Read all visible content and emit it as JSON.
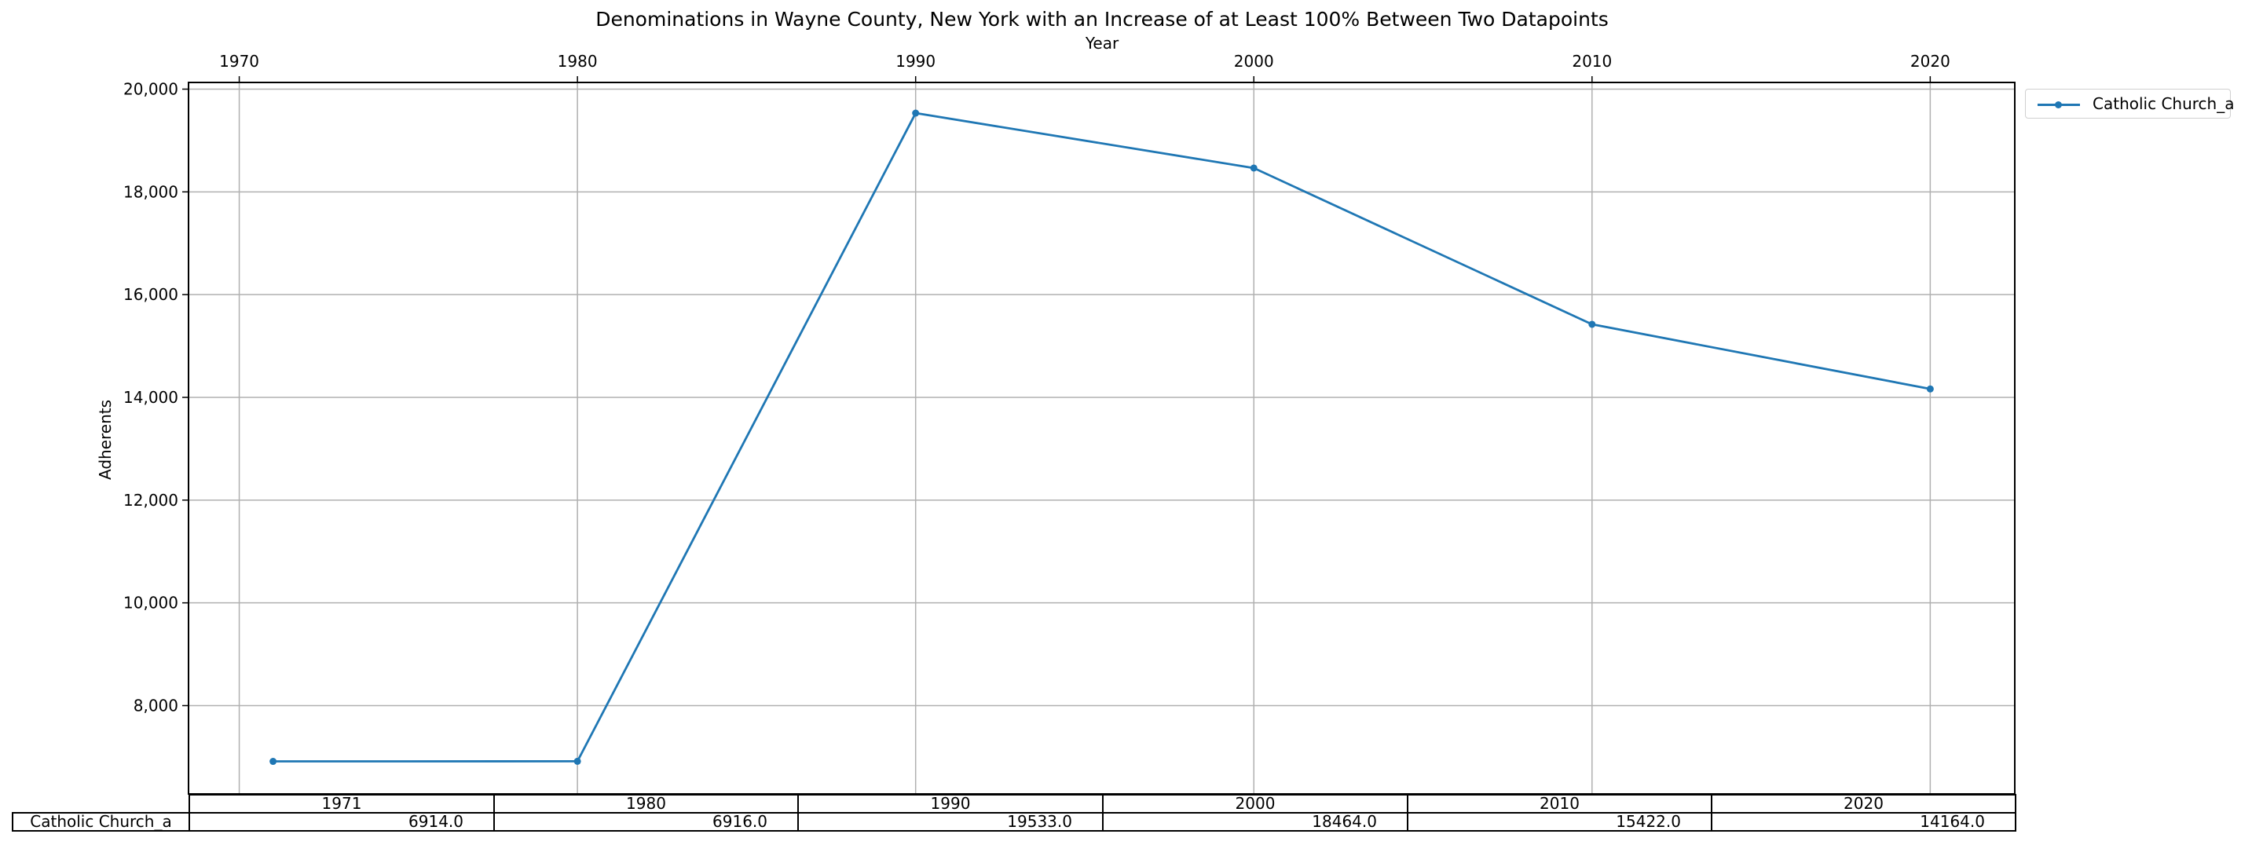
{
  "chart_data": {
    "type": "line",
    "title": "Denominations in Wayne County, New York with an Increase of at Least 100% Between Two Datapoints",
    "xlabel": "Year",
    "ylabel": "Adherents",
    "x": [
      1971,
      1980,
      1990,
      2000,
      2010,
      2020
    ],
    "xticks": [
      "1970",
      "1980",
      "1990",
      "2000",
      "2010",
      "2020"
    ],
    "yticks": [
      "8,000",
      "10,000",
      "12,000",
      "14,000",
      "16,000",
      "18,000",
      "20,000"
    ],
    "ytick_values": [
      8000,
      10000,
      12000,
      14000,
      16000,
      18000,
      20000
    ],
    "xlim": [
      1968.5,
      2022.5
    ],
    "ylim": [
      6280,
      20130
    ],
    "grid": true,
    "legend_position": "outside-top-right",
    "xaxis_position": "top",
    "series": [
      {
        "name": "Catholic Church_a",
        "color": "#1f77b4",
        "values": [
          6914,
          6916,
          19533,
          18464,
          15422,
          14164
        ]
      }
    ],
    "table": {
      "col_labels": [
        "1971",
        "1980",
        "1990",
        "2000",
        "2010",
        "2020"
      ],
      "row_label": "Catholic Church_a",
      "cells": [
        "6914.0",
        "6916.0",
        "19533.0",
        "18464.0",
        "15422.0",
        "14164.0"
      ]
    }
  }
}
